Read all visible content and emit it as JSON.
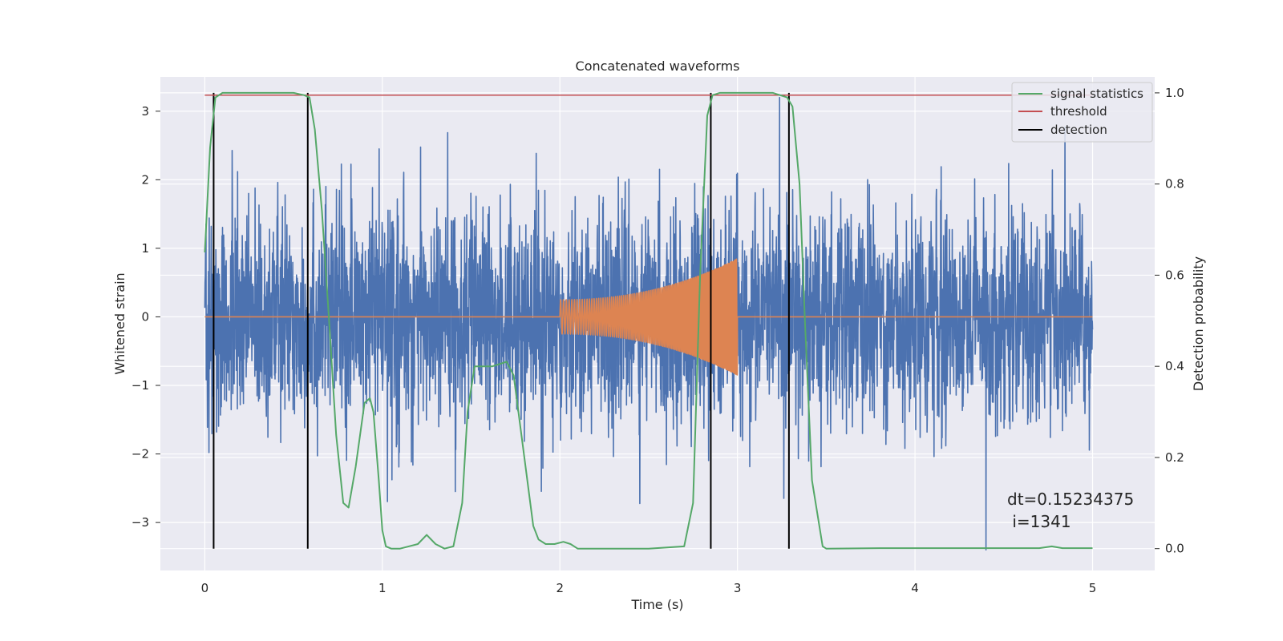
{
  "chart_data": {
    "type": "line",
    "title": "Concatenated waveforms",
    "xlabel": "Time (s)",
    "ylabel": "Whitened strain",
    "y2label": "Detection probability",
    "xlim": [
      -0.25,
      5.35
    ],
    "ylim": [
      -3.7,
      3.5
    ],
    "y2lim": [
      -0.048,
      1.035
    ],
    "xticks": [
      0,
      1,
      2,
      3,
      4,
      5
    ],
    "yticks": [
      -3,
      -2,
      -1,
      0,
      1,
      2,
      3
    ],
    "y2ticks": [
      0.0,
      0.2,
      0.4,
      0.6,
      0.8,
      1.0
    ],
    "grid": true,
    "legend_position": "top-right",
    "legend": [
      "signal statistics",
      "threshold",
      "detection"
    ],
    "colors": {
      "noise": "#4c72b0",
      "injected_signal": "#dd8452",
      "signal_statistics": "#55a868",
      "threshold": "#c44e52",
      "detection": "#000000",
      "background": "#eaeaf2",
      "grid": "#ffffff"
    },
    "noise": {
      "x_range": [
        0,
        5
      ],
      "approx_std": 0.75,
      "approx_range": [
        -3.4,
        3.2
      ]
    },
    "injected_signal": {
      "x_range": [
        2.0,
        3.0
      ],
      "start_amplitude": 0.25,
      "end_amplitude": 0.85
    },
    "threshold_value": 0.995,
    "detections": [
      0.05,
      0.58,
      2.85,
      3.29
    ],
    "signal_statistics": {
      "x": [
        0.0,
        0.03,
        0.06,
        0.1,
        0.3,
        0.5,
        0.56,
        0.59,
        0.62,
        0.66,
        0.7,
        0.74,
        0.78,
        0.81,
        0.85,
        0.9,
        0.93,
        0.95,
        0.98,
        1.0,
        1.02,
        1.05,
        1.1,
        1.2,
        1.25,
        1.3,
        1.35,
        1.4,
        1.45,
        1.48,
        1.52,
        1.56,
        1.62,
        1.7,
        1.74,
        1.8,
        1.85,
        1.88,
        1.92,
        1.97,
        2.02,
        2.06,
        2.1,
        2.3,
        2.5,
        2.7,
        2.75,
        2.79,
        2.83,
        2.86,
        2.9,
        3.0,
        3.2,
        3.28,
        3.31,
        3.35,
        3.38,
        3.42,
        3.48,
        3.5,
        3.8,
        4.7,
        4.77,
        4.83,
        5.0
      ],
      "y": [
        0.65,
        0.88,
        0.99,
        1.0,
        1.0,
        1.0,
        0.995,
        0.99,
        0.92,
        0.74,
        0.5,
        0.25,
        0.1,
        0.09,
        0.18,
        0.32,
        0.33,
        0.3,
        0.15,
        0.04,
        0.005,
        0.0,
        0.0,
        0.01,
        0.03,
        0.01,
        0.0,
        0.005,
        0.1,
        0.3,
        0.4,
        0.4,
        0.4,
        0.41,
        0.38,
        0.2,
        0.05,
        0.02,
        0.01,
        0.01,
        0.015,
        0.01,
        0.0,
        0.0,
        0.0,
        0.005,
        0.1,
        0.6,
        0.95,
        0.995,
        1.0,
        1.0,
        1.0,
        0.99,
        0.97,
        0.8,
        0.5,
        0.15,
        0.005,
        0.0,
        0.001,
        0.001,
        0.005,
        0.001,
        0.001
      ]
    },
    "annotation": [
      "dt=0.15234375",
      " i=1341"
    ]
  }
}
